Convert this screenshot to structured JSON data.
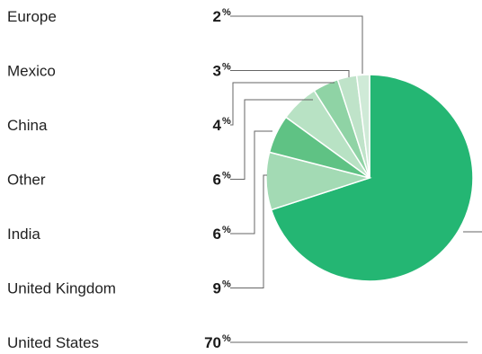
{
  "chart_data": {
    "type": "pie",
    "title": "",
    "legend": "left",
    "unit_symbol": "%",
    "series": [
      {
        "category": "Europe",
        "value": 2,
        "color": "#cfead7"
      },
      {
        "category": "Mexico",
        "value": 3,
        "color": "#bfe3c9"
      },
      {
        "category": "China",
        "value": 4,
        "color": "#8fd3a5"
      },
      {
        "category": "Other",
        "value": 6,
        "color": "#b8e2c4"
      },
      {
        "category": "India",
        "value": 6,
        "color": "#5fc284"
      },
      {
        "category": "United Kingdom",
        "value": 9,
        "color": "#a3dab4"
      },
      {
        "category": "United States",
        "value": 70,
        "color": "#24b673"
      }
    ]
  }
}
